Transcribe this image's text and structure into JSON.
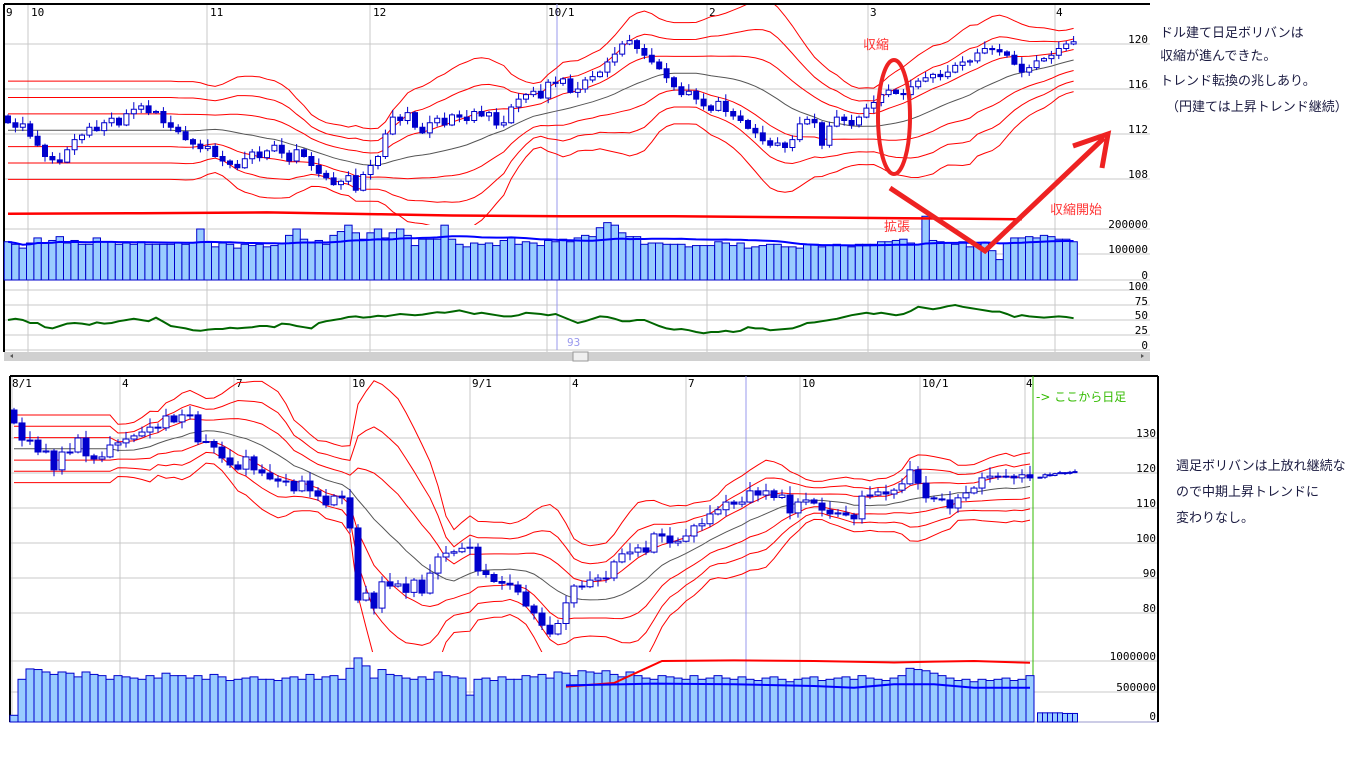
{
  "top_panel": {
    "x_ticks": [
      "9",
      "10",
      "11",
      "12",
      "10/1",
      "2",
      "3",
      "4"
    ],
    "price_ticks": [
      "120",
      "116",
      "112",
      "108"
    ],
    "volume_ticks": [
      "200000",
      "100000",
      "0"
    ],
    "osc_ticks": [
      "100",
      "75",
      "50",
      "25",
      "0"
    ],
    "cursor_label": "93",
    "annotations": {
      "shrink": "収縮",
      "expand": "拡張",
      "shrink_start": "収縮開始"
    }
  },
  "notes_top": [
    "ドル建て日足ボリバンは",
    "収縮が進んできた。",
    "トレンド転換の兆しあり。",
    "（円建ては上昇トレンド継続）"
  ],
  "bottom_panel": {
    "x_ticks": [
      "8/1",
      "4",
      "7",
      "10",
      "9/1",
      "4",
      "7",
      "10",
      "10/1",
      "4"
    ],
    "price_ticks": [
      "130",
      "120",
      "110",
      "100",
      "90",
      "80"
    ],
    "volume_ticks": [
      "1000000",
      "500000",
      "0"
    ],
    "daily_marker": "-> ここから日足"
  },
  "notes_bottom": [
    "週足ボリバンは上放れ継続な",
    "ので中期上昇トレンドに",
    "変わりなし。"
  ],
  "colors": {
    "candle": "#0000cc",
    "band": "#ff0000",
    "moving_average": "#555555",
    "volume_fill": "#99ccff",
    "volume_ma": "#0000ff",
    "oscillator": "#006600",
    "annotation": "#ee2222",
    "daily_marker": "#33bb00",
    "cursor": "#9999ee"
  },
  "chart_data": [
    {
      "type": "candlestick",
      "panel": "daily (top)",
      "price_range": [
        104,
        123.5
      ],
      "indicators": [
        "bollinger ±1σ/±2σ/±3σ",
        "moving average",
        "volume",
        "volume moving average",
        "oscillator 0-100"
      ],
      "closes": [
        113,
        112.6,
        112.9,
        111.8,
        111,
        110,
        109.7,
        109.5,
        110.6,
        111.5,
        111.9,
        112.6,
        112.3,
        113,
        113.4,
        112.8,
        113.8,
        114.2,
        114.5,
        113.9,
        114,
        113,
        112.6,
        112.2,
        111.5,
        111.1,
        110.7,
        110.9,
        110,
        109.6,
        109.3,
        109,
        109.8,
        110.4,
        109.9,
        110.5,
        111,
        110.3,
        109.6,
        110.6,
        110,
        109.2,
        108.5,
        108.1,
        107.5,
        107.8,
        108.3,
        107,
        108.4,
        109.2,
        110,
        112,
        113.5,
        113.2,
        113.9,
        112.6,
        112.1,
        113,
        113.4,
        112.8,
        113.7,
        113.5,
        113.2,
        114,
        113.6,
        113.9,
        112.8,
        113,
        114.4,
        115.1,
        115.5,
        115.8,
        115.2,
        116.6,
        116.5,
        116.9,
        115.7,
        116,
        116.8,
        117.1,
        117.5,
        118.4,
        119.1,
        120,
        120.3,
        119.6,
        119,
        118.4,
        117.8,
        117,
        116.2,
        115.5,
        115.8,
        115.1,
        114.5,
        114.1,
        114.9,
        114,
        113.6,
        113.2,
        112.5,
        112.1,
        111.4,
        111,
        111.2,
        110.8,
        111.5,
        112.9,
        113.3,
        113,
        111,
        112.7,
        113.5,
        113.2,
        112.8,
        113.5,
        114.3,
        114.8,
        115.5,
        115.9,
        115.6,
        115.5,
        116.2,
        116.7,
        117,
        117.3,
        117.1,
        117.5,
        118.1,
        118.4,
        118.5,
        119.2,
        119.6,
        119.5,
        119.3,
        119,
        118.2,
        117.5,
        117.9,
        118.5,
        118.7,
        119,
        119.6,
        120,
        120.2
      ],
      "volumes": [
        150000,
        140000,
        125000,
        145000,
        165000,
        145000,
        155000,
        170000,
        145000,
        155000,
        140000,
        140000,
        165000,
        150000,
        150000,
        140000,
        145000,
        140000,
        150000,
        140000,
        140000,
        140000,
        140000,
        145000,
        140000,
        145000,
        200000,
        150000,
        130000,
        145000,
        140000,
        125000,
        140000,
        135000,
        140000,
        130000,
        135000,
        145000,
        175000,
        200000,
        160000,
        145000,
        155000,
        140000,
        175000,
        190000,
        215000,
        185000,
        160000,
        185000,
        200000,
        165000,
        185000,
        200000,
        175000,
        135000,
        160000,
        160000,
        160000,
        215000,
        160000,
        140000,
        130000,
        145000,
        140000,
        145000,
        135000,
        155000,
        165000,
        140000,
        150000,
        145000,
        135000,
        155000,
        150000,
        160000,
        150000,
        165000,
        175000,
        170000,
        205000,
        225000,
        215000,
        185000,
        170000,
        170000,
        140000,
        145000,
        145000,
        140000,
        140000,
        140000,
        130000,
        135000,
        135000,
        135000,
        150000,
        145000,
        135000,
        145000,
        125000,
        130000,
        135000,
        140000,
        140000,
        130000,
        130000,
        125000,
        140000,
        140000,
        130000,
        135000,
        140000,
        135000,
        130000,
        140000,
        140000,
        140000,
        150000,
        150000,
        155000,
        160000,
        145000,
        140000,
        250000,
        155000,
        150000,
        145000,
        140000,
        150000,
        130000,
        140000,
        145000,
        115000,
        80000,
        145000,
        165000,
        165000,
        170000,
        165000,
        175000,
        170000,
        160000,
        160000,
        150000
      ],
      "upper_volume_line": [
        [
          0,
          260000
        ],
        [
          18,
          262000
        ],
        [
          35,
          265000
        ],
        [
          50,
          258000
        ],
        [
          60,
          253000
        ],
        [
          75,
          250000
        ],
        [
          90,
          250000
        ],
        [
          110,
          245000
        ],
        [
          130,
          240000
        ],
        [
          137,
          238000
        ]
      ],
      "oscillator": [
        50,
        52,
        50,
        45,
        45,
        38,
        36,
        40,
        44,
        45,
        44,
        42,
        46,
        44,
        45,
        48,
        50,
        52,
        50,
        48,
        54,
        47,
        40,
        38,
        36,
        33,
        32,
        34,
        35,
        35,
        37,
        36,
        37,
        38,
        40,
        40,
        38,
        44,
        43,
        40,
        38,
        36,
        45,
        48,
        50,
        52,
        55,
        56,
        54,
        55,
        57,
        56,
        58,
        60,
        59,
        58,
        59,
        61,
        63,
        62,
        64,
        66,
        63,
        60,
        62,
        60,
        58,
        56,
        56,
        58,
        62,
        61,
        60,
        58,
        60,
        55,
        50,
        45,
        48,
        52,
        56,
        55,
        52,
        48,
        48,
        50,
        50,
        45,
        40,
        36,
        34,
        35,
        33,
        30,
        28,
        30,
        30,
        32,
        30,
        32,
        38,
        36,
        36,
        33,
        34,
        35,
        36,
        40,
        45,
        46,
        48,
        50,
        52,
        55,
        58,
        60,
        62,
        60,
        62,
        60,
        58,
        60,
        65,
        72,
        70,
        68,
        70,
        73,
        75,
        72,
        70,
        68,
        66,
        64,
        64,
        60,
        55,
        58,
        56,
        55,
        54,
        55,
        56,
        55,
        53
      ]
    },
    {
      "type": "candlestick",
      "panel": "weekly (bottom), daily after marker",
      "price_range": [
        73,
        147
      ],
      "closes": [
        134.3,
        129.4,
        129.4,
        126,
        126.3,
        120.9,
        126,
        126,
        130,
        124.9,
        124,
        124.6,
        128,
        128.6,
        129.7,
        130.6,
        131.7,
        133.1,
        132.9,
        136.3,
        134.6,
        136.6,
        136.6,
        128.9,
        129,
        127.4,
        124.3,
        122.3,
        121.1,
        124.6,
        120.9,
        120,
        118.3,
        117.7,
        117.6,
        114.9,
        117.7,
        114.9,
        113.4,
        110.9,
        113.4,
        112.9,
        104.3,
        83.7,
        85.7,
        81.4,
        88.9,
        87.7,
        88.3,
        85.9,
        89.4,
        85.7,
        91.4,
        96,
        97.1,
        97.5,
        98.5,
        98.8,
        92,
        91,
        89,
        88.5,
        88,
        86,
        82,
        80,
        76.5,
        74,
        77,
        82.9,
        87.7,
        87.5,
        89.4,
        90,
        90,
        94.6,
        96.9,
        97.4,
        98.6,
        97.4,
        102.6,
        102,
        100,
        100.5,
        102,
        104.9,
        105.5,
        108.3,
        109.5,
        111.7,
        111.1,
        111.7,
        114.9,
        113.7,
        114.9,
        113,
        113.7,
        108.6,
        111.7,
        112.3,
        111.4,
        109.4,
        108.3,
        108.6,
        108,
        106.9,
        113.4,
        113.7,
        114.6,
        114,
        115.1,
        116.9,
        120.9,
        117.1,
        112.9,
        112.6,
        112.3,
        110,
        112.9,
        114.3,
        115.7,
        118.6,
        119.1,
        118.9,
        119.1,
        118.6,
        119.5,
        118.6
      ],
      "daily_closes": [
        118.8,
        119.5,
        119.3,
        119.8,
        120.1,
        119.9,
        120.2,
        120.4
      ],
      "volumes": [
        110000,
        700000,
        870000,
        860000,
        820000,
        780000,
        820000,
        800000,
        740000,
        820000,
        780000,
        760000,
        700000,
        760000,
        740000,
        720000,
        700000,
        760000,
        720000,
        800000,
        760000,
        760000,
        720000,
        760000,
        700000,
        780000,
        740000,
        680000,
        700000,
        720000,
        740000,
        700000,
        700000,
        680000,
        720000,
        740000,
        700000,
        780000,
        700000,
        740000,
        760000,
        700000,
        880000,
        1050000,
        920000,
        720000,
        860000,
        780000,
        760000,
        720000,
        700000,
        740000,
        700000,
        820000,
        760000,
        740000,
        720000,
        440000,
        700000,
        720000,
        680000,
        740000,
        700000,
        700000,
        760000,
        740000,
        780000,
        720000,
        820000,
        800000,
        760000,
        840000,
        820000,
        800000,
        840000,
        780000,
        740000,
        820000,
        760000,
        720000,
        700000,
        760000,
        740000,
        720000,
        700000,
        760000,
        700000,
        720000,
        760000,
        720000,
        700000,
        740000,
        700000,
        680000,
        720000,
        740000,
        700000,
        660000,
        700000,
        720000,
        740000,
        680000,
        700000,
        720000,
        740000,
        700000,
        760000,
        720000,
        700000,
        680000,
        720000,
        760000,
        880000,
        860000,
        840000,
        800000,
        760000,
        720000,
        680000,
        700000,
        660000,
        700000,
        680000,
        700000,
        720000,
        680000,
        700000,
        760000
      ],
      "daily_volumes": [
        150000,
        150000,
        150000,
        150000,
        150000,
        140000,
        140000,
        140000
      ],
      "volume_line_red": [
        [
          69,
          580000
        ],
        [
          75,
          640000
        ],
        [
          81,
          1000000
        ],
        [
          90,
          1010000
        ],
        [
          100,
          1000000
        ],
        [
          110,
          975000
        ],
        [
          115,
          990000
        ],
        [
          120,
          1000000
        ],
        [
          127,
          970000
        ]
      ],
      "volume_line_blue": [
        [
          69,
          600000
        ],
        [
          80,
          630000
        ],
        [
          90,
          620000
        ],
        [
          100,
          590000
        ],
        [
          105,
          560000
        ],
        [
          110,
          620000
        ],
        [
          115,
          620000
        ],
        [
          120,
          560000
        ],
        [
          127,
          560000
        ]
      ]
    }
  ]
}
